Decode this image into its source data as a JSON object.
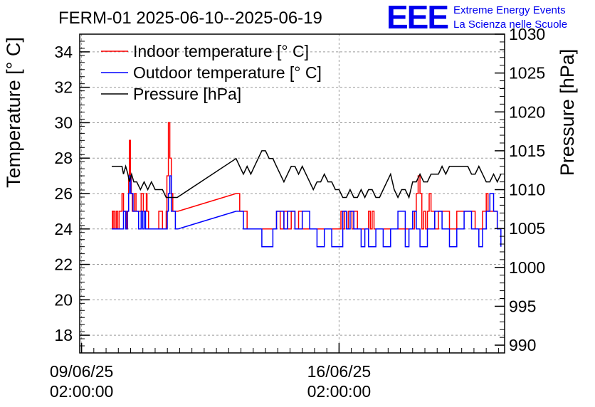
{
  "chart_data": {
    "type": "line",
    "title": "FERM-01 2025-06-10--2025-06-19",
    "ylabel": "Temperature [° C]",
    "y2label": "Pressure [hPa]",
    "ylim": [
      17,
      35
    ],
    "y2lim": [
      989,
      1030
    ],
    "y_ticks": [
      18,
      20,
      22,
      24,
      26,
      28,
      30,
      32,
      34
    ],
    "y_tick_labels": [
      "18",
      "20",
      "22",
      "24",
      "26",
      "28",
      "30",
      "32",
      "34"
    ],
    "y2_ticks": [
      990,
      995,
      1000,
      1005,
      1010,
      1015,
      1020,
      1025,
      1030
    ],
    "y2_tick_labels": [
      "990",
      "995",
      "1000",
      "1005",
      "1010",
      "1015",
      "1020",
      "1025",
      "1030"
    ],
    "xlim_days": [
      -0.05,
      11.5
    ],
    "x_ticks": [
      {
        "day": 0,
        "label_date": "09/06/25",
        "label_time": "02:00:00"
      },
      {
        "day": 7,
        "label_date": "16/06/25",
        "label_time": "02:00:00"
      }
    ],
    "grid": true,
    "legend_position": "top-left",
    "series": [
      {
        "name": "Indoor temperature [° C]",
        "color": "#ff0000",
        "axis": "left",
        "x": [
          0.82,
          0.84,
          0.86,
          0.9,
          0.94,
          0.98,
          1.02,
          1.06,
          1.1,
          1.14,
          1.2,
          1.22,
          1.25,
          1.28,
          1.3,
          1.33,
          1.35,
          1.38,
          1.4,
          1.44,
          1.48,
          1.55,
          1.62,
          1.68,
          1.72,
          1.76,
          1.78,
          1.82,
          1.86,
          1.9,
          2.0,
          2.1,
          2.2,
          2.3,
          2.32,
          2.36,
          2.4,
          2.44,
          2.48,
          2.55,
          2.62,
          4.2,
          4.3,
          4.35,
          4.5,
          4.6,
          5.2,
          5.3,
          5.4,
          5.5,
          5.6,
          5.7,
          5.8,
          5.9,
          6.0,
          6.1,
          6.2,
          6.3,
          6.4,
          6.5,
          6.6,
          6.7,
          6.8,
          6.9,
          7.0,
          7.05,
          7.1,
          7.15,
          7.2,
          7.25,
          7.3,
          7.35,
          7.4,
          7.45,
          7.5,
          7.55,
          7.6,
          7.65,
          7.7,
          7.75,
          7.8,
          7.85,
          7.9,
          7.95,
          8.0,
          8.2,
          8.4,
          8.6,
          8.8,
          9.0,
          9.05,
          9.1,
          9.15,
          9.2,
          9.25,
          9.3,
          9.35,
          9.4,
          9.45,
          9.5,
          9.55,
          9.6,
          9.7,
          9.8,
          9.9,
          10.0,
          10.1,
          10.2,
          10.3,
          10.5,
          10.7,
          10.9,
          10.95,
          11.0,
          11.05,
          11.1,
          11.15,
          11.3,
          11.4
        ],
        "values": [
          25,
          24,
          25,
          24,
          25,
          24,
          25,
          25,
          26,
          25,
          25,
          24,
          25,
          27,
          29,
          27,
          26,
          25,
          25,
          26,
          25,
          25,
          26,
          25,
          25,
          26,
          25,
          24,
          24,
          24,
          24,
          25,
          24,
          25,
          27,
          30,
          28,
          26,
          25,
          25,
          25,
          26,
          25,
          25,
          24,
          24,
          24,
          25,
          24,
          25,
          24,
          25,
          24,
          25,
          24,
          24,
          24,
          24,
          24,
          24,
          24,
          24,
          24,
          24,
          24,
          25,
          24,
          25,
          24,
          25,
          25,
          24,
          25,
          25,
          24,
          24,
          24,
          24,
          24,
          24,
          25,
          24,
          25,
          24,
          24,
          24,
          24,
          24,
          24,
          24,
          25,
          26,
          27,
          26,
          24,
          25,
          24,
          25,
          26,
          25,
          25,
          24,
          25,
          25,
          25,
          24,
          24,
          25,
          25,
          25,
          24,
          25,
          25,
          26,
          25,
          25,
          25,
          24,
          24
        ]
      },
      {
        "name": "Outdoor temperature [° C]",
        "color": "#0000ff",
        "axis": "left",
        "x": [
          0.82,
          0.9,
          1.0,
          1.1,
          1.14,
          1.2,
          1.24,
          1.28,
          1.3,
          1.34,
          1.4,
          1.48,
          1.55,
          1.62,
          1.66,
          1.7,
          1.74,
          1.78,
          1.82,
          2.0,
          2.2,
          2.3,
          2.33,
          2.36,
          2.4,
          2.44,
          2.55,
          2.62,
          4.2,
          4.35,
          4.4,
          4.6,
          4.9,
          5.1,
          5.2,
          5.3,
          5.5,
          5.6,
          5.8,
          6.0,
          6.2,
          6.4,
          6.6,
          6.8,
          6.9,
          7.0,
          7.1,
          7.2,
          7.3,
          7.4,
          7.6,
          7.7,
          7.8,
          8.0,
          8.2,
          8.4,
          8.6,
          8.8,
          8.9,
          9.0,
          9.1,
          9.2,
          9.4,
          9.6,
          9.8,
          10.0,
          10.2,
          10.4,
          10.6,
          10.8,
          10.9,
          11.0,
          11.1,
          11.2,
          11.3,
          11.4
        ],
        "values": [
          24,
          24,
          24,
          24,
          25,
          24,
          25,
          26,
          27,
          26,
          25,
          25,
          24,
          25,
          24,
          25,
          24,
          24,
          24,
          24,
          24,
          24,
          25,
          26,
          27,
          25,
          24,
          24,
          25,
          25,
          24,
          24,
          23,
          23,
          24,
          25,
          24,
          25,
          24,
          25,
          24,
          23,
          24,
          23,
          23,
          23,
          25,
          24,
          25,
          24,
          23,
          24,
          23,
          24,
          23,
          24,
          25,
          23,
          24,
          25,
          24,
          23,
          24,
          25,
          24,
          23,
          24,
          25,
          24,
          23,
          24,
          25,
          26,
          25,
          24,
          23
        ]
      },
      {
        "name": "Pressure [hPa]",
        "color": "#000000",
        "axis": "right",
        "x": [
          0.82,
          0.9,
          1.0,
          1.1,
          1.14,
          1.2,
          1.26,
          1.3,
          1.36,
          1.42,
          1.5,
          1.6,
          1.7,
          1.8,
          1.9,
          2.0,
          2.1,
          2.2,
          2.3,
          2.4,
          2.5,
          2.6,
          4.2,
          4.3,
          4.4,
          4.5,
          4.6,
          4.7,
          4.8,
          4.9,
          5.0,
          5.1,
          5.2,
          5.3,
          5.4,
          5.5,
          5.6,
          5.7,
          5.8,
          5.9,
          6.0,
          6.1,
          6.2,
          6.3,
          6.4,
          6.5,
          6.6,
          6.7,
          6.8,
          6.9,
          7.0,
          7.1,
          7.2,
          7.3,
          7.4,
          7.5,
          7.6,
          7.7,
          7.8,
          7.9,
          8.0,
          8.1,
          8.2,
          8.3,
          8.4,
          8.5,
          8.6,
          8.7,
          8.8,
          8.9,
          9.0,
          9.1,
          9.2,
          9.3,
          9.4,
          9.5,
          9.6,
          9.7,
          9.8,
          9.9,
          10.0,
          10.1,
          10.2,
          10.3,
          10.4,
          10.5,
          10.6,
          10.7,
          10.8,
          10.9,
          11.0,
          11.1,
          11.2,
          11.3,
          11.4
        ],
        "values": [
          1013,
          1013,
          1013,
          1013,
          1012,
          1013,
          1012,
          1011,
          1012,
          1011,
          1011,
          1010,
          1011,
          1010,
          1011,
          1010,
          1010,
          1010,
          1009,
          1009,
          1009,
          1009,
          1014,
          1013,
          1012,
          1013,
          1012,
          1013,
          1014,
          1015,
          1015,
          1014,
          1014,
          1013,
          1012,
          1011,
          1012,
          1013,
          1013,
          1012,
          1013,
          1012,
          1011,
          1010,
          1011,
          1011,
          1012,
          1011,
          1011,
          1010,
          1010,
          1009,
          1009,
          1010,
          1009,
          1009,
          1010,
          1009,
          1010,
          1010,
          1009,
          1009,
          1010,
          1011,
          1012,
          1010,
          1009,
          1010,
          1010,
          1009,
          1011,
          1011,
          1012,
          1011,
          1011,
          1012,
          1012,
          1012,
          1013,
          1012,
          1013,
          1013,
          1013,
          1013,
          1013,
          1013,
          1012,
          1012,
          1013,
          1012,
          1011,
          1011,
          1012,
          1011,
          1012
        ]
      }
    ]
  },
  "logo": {
    "mark": "EEE",
    "line1": "Extreme Energy Events",
    "line2": "La Scienza nelle Scuole",
    "color": "#0000ee"
  }
}
